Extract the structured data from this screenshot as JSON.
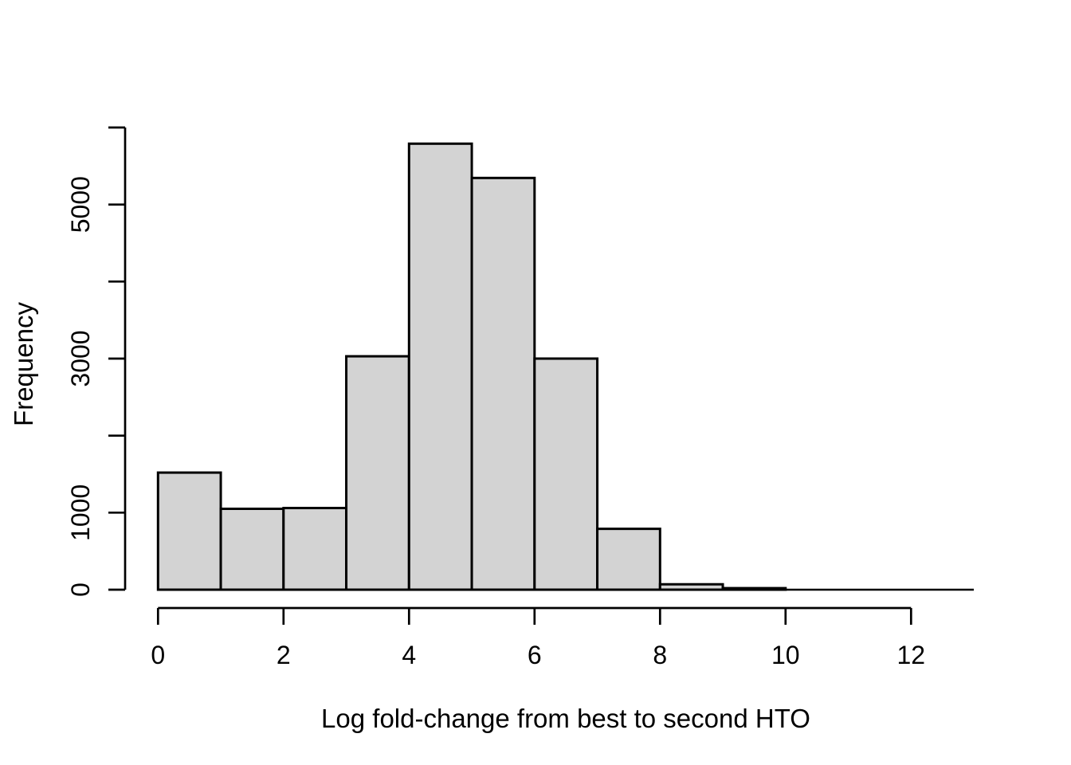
{
  "figure": {
    "title": "",
    "background_color": "#ffffff"
  },
  "colors": {
    "bar_fill": "#d3d3d3",
    "bar_border": "#000000",
    "axis_color": "#000000",
    "text_color": "#000000"
  },
  "chart_data": {
    "type": "bar",
    "subtype": "histogram",
    "title": "",
    "xlabel": "Log fold-change from best to second HTO",
    "ylabel": "Frequency",
    "xlim": [
      0,
      13
    ],
    "ylim": [
      0,
      6000
    ],
    "grid": false,
    "legend": null,
    "bin_width": 1,
    "bin_edges": [
      0,
      1,
      2,
      3,
      4,
      5,
      6,
      7,
      8,
      9,
      10,
      11,
      12,
      13
    ],
    "counts": [
      1520,
      1050,
      1060,
      3030,
      5790,
      5345,
      3000,
      790,
      70,
      20,
      0,
      0,
      0
    ],
    "x_ticks": [
      0,
      2,
      4,
      6,
      8,
      10,
      12
    ],
    "x_tick_labels": [
      "0",
      "2",
      "4",
      "6",
      "8",
      "10",
      "12"
    ],
    "y_ticks": [
      0,
      1000,
      2000,
      3000,
      4000,
      5000,
      6000
    ],
    "y_tick_labels": [
      "0",
      "1000",
      "",
      "3000",
      "",
      "5000",
      ""
    ]
  }
}
